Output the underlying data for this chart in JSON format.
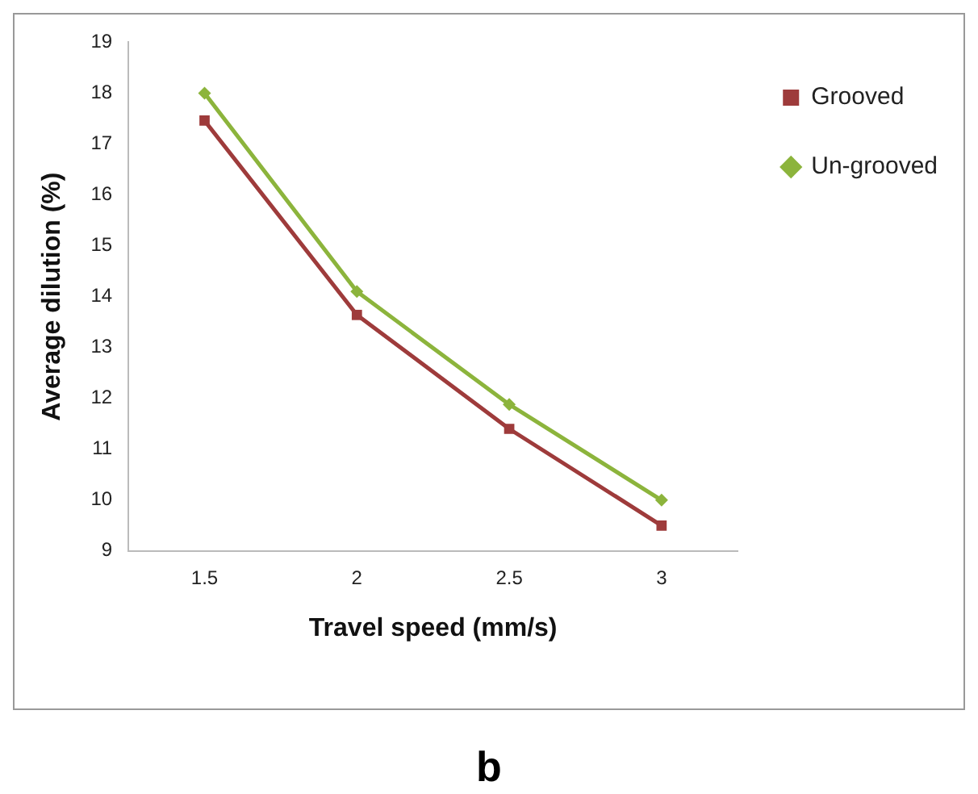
{
  "chart_data": {
    "type": "line",
    "xlabel": "Travel speed (mm/s)",
    "ylabel": "Average dilution (%)",
    "categories": [
      "1.5",
      "2",
      "2.5",
      "3"
    ],
    "series": [
      {
        "name": "Grooved",
        "color": "#9e3b3b",
        "marker": "square",
        "values": [
          17.46,
          13.64,
          11.4,
          9.5
        ]
      },
      {
        "name": "Un-grooved",
        "color": "#8cb43c",
        "marker": "diamond",
        "values": [
          18.0,
          14.1,
          11.88,
          10.0
        ]
      }
    ],
    "ylim": [
      9,
      19
    ],
    "yticks": [
      9,
      10,
      11,
      12,
      13,
      14,
      15,
      16,
      17,
      18,
      19
    ],
    "grid": false,
    "legend": "right",
    "line_style": "solid",
    "annotations": [
      "b"
    ]
  }
}
